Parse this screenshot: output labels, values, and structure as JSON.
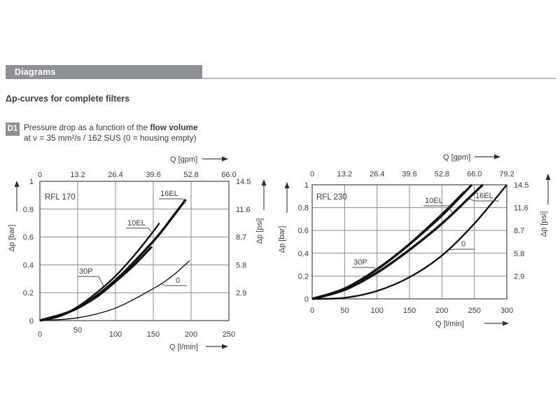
{
  "page": {
    "section_header": "Diagrams",
    "subtitle": "Δp-curves for complete filters",
    "figure_tag": "D1",
    "caption_line1_normal": "Pressure drop as a function of the ",
    "caption_line1_bold": "flow volume",
    "caption_line2": "at ν = 35 mm²/s / 162 SUS  (0 = housing empty)"
  },
  "colors": {
    "header_gray": "#8d9195",
    "text": "#3b3b3b",
    "grid": "#8a8a8a",
    "plot_border": "#5e5e5e",
    "curve": "#121212"
  },
  "chart_data": [
    {
      "type": "line",
      "title": "RFL 170",
      "x_top_axis": {
        "label": "Q [gpm]",
        "ticks": [
          "0",
          "13.2",
          "26.4",
          "39.6",
          "52.8",
          "66.0"
        ]
      },
      "x_bottom_axis": {
        "label": "Q [l/min]",
        "ticks": [
          "0",
          "50",
          "100",
          "150",
          "200",
          "250"
        ],
        "range": [
          0,
          250
        ]
      },
      "y_left_axis": {
        "label": "Δp [bar]",
        "ticks": [
          "1",
          "0.8",
          "0.6",
          "0.4",
          "0.2",
          "0"
        ],
        "range": [
          0,
          1
        ]
      },
      "y_right_axis": {
        "label": "Δp [psi]",
        "ticks": [
          "14.5",
          "11.6",
          "8.7",
          "5.8",
          "2.9"
        ]
      },
      "grid": true,
      "series": [
        {
          "name": "0",
          "points": [
            [
              0,
              0
            ],
            [
              50,
              0.02
            ],
            [
              100,
              0.09
            ],
            [
              150,
              0.23
            ],
            [
              175,
              0.32
            ],
            [
              198,
              0.43
            ]
          ]
        },
        {
          "name": "30P",
          "points": [
            [
              0,
              0
            ],
            [
              25,
              0.03
            ],
            [
              50,
              0.09
            ],
            [
              75,
              0.17
            ],
            [
              100,
              0.28
            ],
            [
              125,
              0.4
            ],
            [
              148,
              0.53
            ]
          ]
        },
        {
          "name": "10EL",
          "points": [
            [
              0,
              0
            ],
            [
              25,
              0.03
            ],
            [
              50,
              0.1
            ],
            [
              75,
              0.2
            ],
            [
              100,
              0.32
            ],
            [
              125,
              0.47
            ],
            [
              150,
              0.64
            ],
            [
              158,
              0.7
            ]
          ]
        },
        {
          "name": "16EL",
          "points": [
            [
              0,
              0
            ],
            [
              50,
              0.09
            ],
            [
              100,
              0.29
            ],
            [
              150,
              0.57
            ],
            [
              175,
              0.74
            ],
            [
              193,
              0.87
            ]
          ]
        }
      ]
    },
    {
      "type": "line",
      "title": "RFL 230",
      "x_top_axis": {
        "label": "Q [gpm]",
        "ticks": [
          "0",
          "13.2",
          "26.4",
          "39.6",
          "52.8",
          "66.0",
          "79.2"
        ]
      },
      "x_bottom_axis": {
        "label": "Q [l/min]",
        "ticks": [
          "0",
          "50",
          "100",
          "150",
          "200",
          "250",
          "300"
        ],
        "range": [
          0,
          300
        ]
      },
      "y_left_axis": {
        "label": "Δp [bar]",
        "ticks": [
          "1",
          "0.8",
          "0.6",
          "0.4",
          "0.2",
          "0"
        ],
        "range": [
          0,
          1
        ]
      },
      "y_right_axis": {
        "label": "Δp [psi]",
        "ticks": [
          "14.5",
          "11.6",
          "8.7",
          "5.8",
          "2.9"
        ]
      },
      "grid": true,
      "series": [
        {
          "name": "0",
          "points": [
            [
              0,
              0
            ],
            [
              50,
              0.01
            ],
            [
              100,
              0.07
            ],
            [
              150,
              0.19
            ],
            [
              200,
              0.38
            ],
            [
              250,
              0.66
            ],
            [
              300,
              1.0
            ]
          ]
        },
        {
          "name": "30P",
          "points": [
            [
              0,
              0
            ],
            [
              50,
              0.09
            ],
            [
              100,
              0.26
            ],
            [
              150,
              0.48
            ],
            [
              200,
              0.74
            ],
            [
              235,
              0.94
            ]
          ]
        },
        {
          "name": "10EL",
          "points": [
            [
              0,
              0
            ],
            [
              50,
              0.09
            ],
            [
              100,
              0.26
            ],
            [
              150,
              0.48
            ],
            [
              200,
              0.73
            ],
            [
              246,
              1.0
            ]
          ]
        },
        {
          "name": "16EL",
          "points": [
            [
              0,
              0
            ],
            [
              50,
              0.08
            ],
            [
              100,
              0.23
            ],
            [
              150,
              0.43
            ],
            [
              200,
              0.66
            ],
            [
              250,
              0.93
            ],
            [
              263,
              1.0
            ]
          ]
        }
      ]
    }
  ]
}
